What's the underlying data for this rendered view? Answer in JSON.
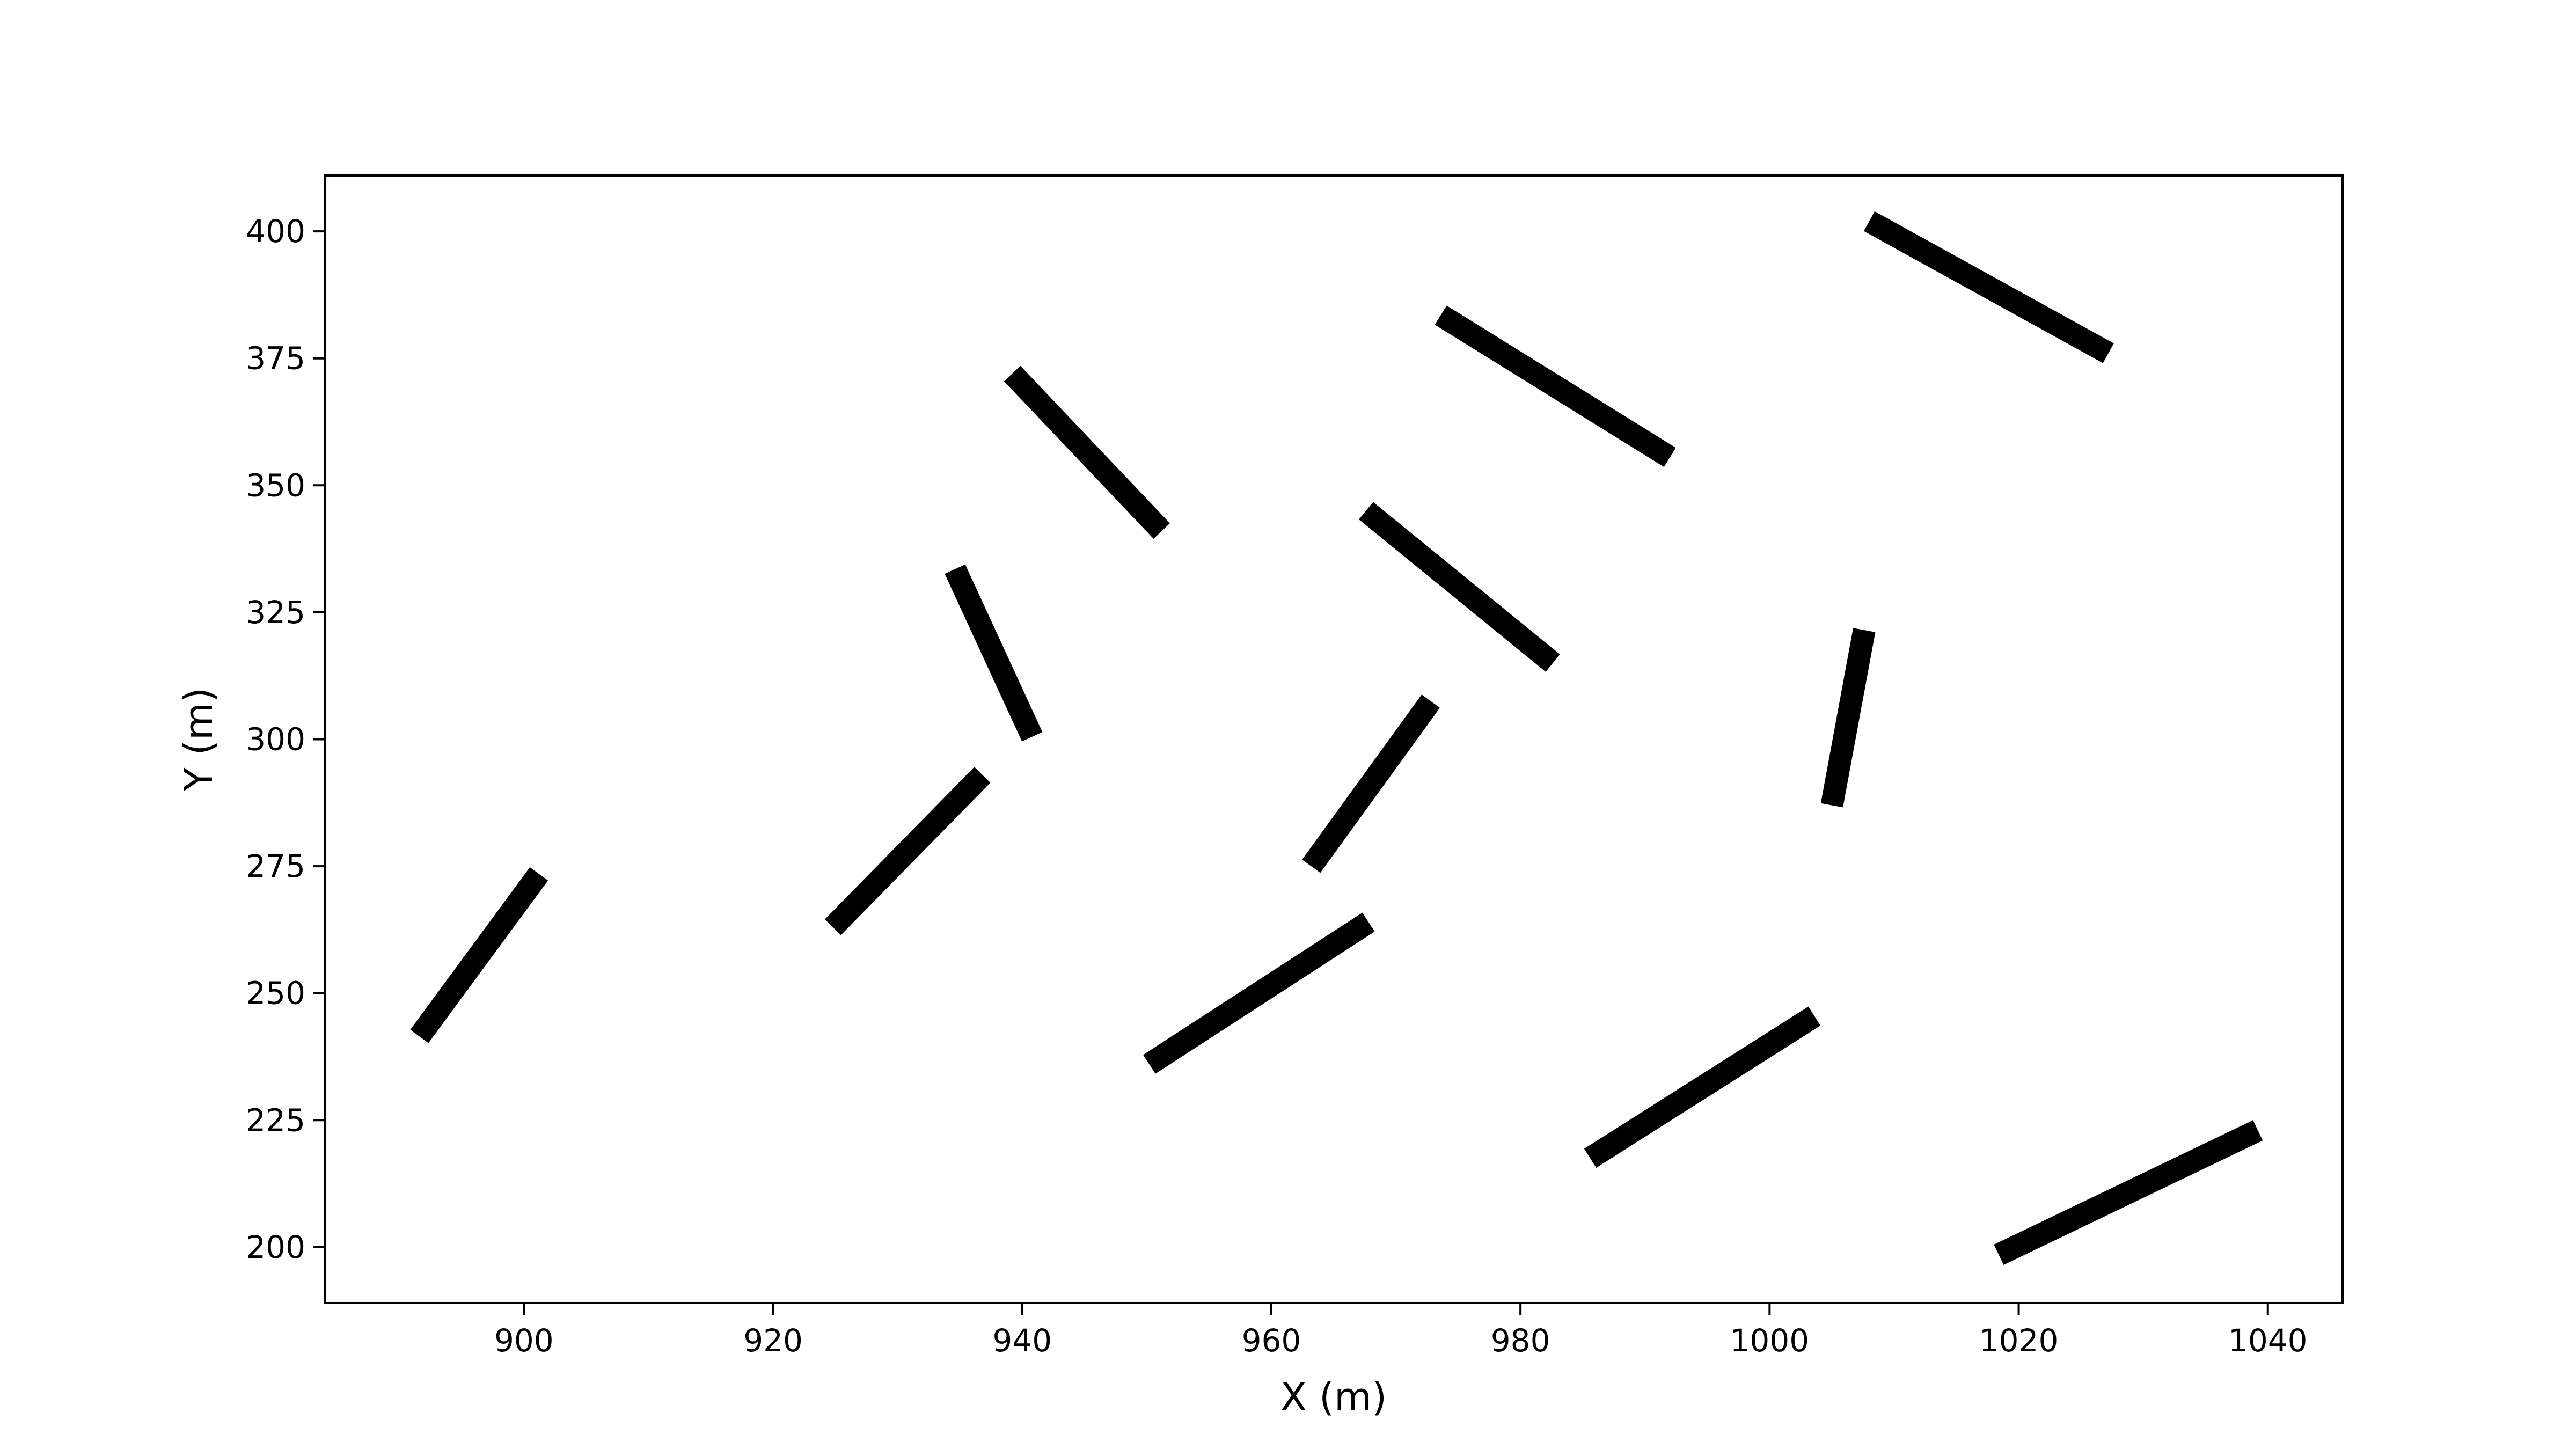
{
  "chart_data": {
    "type": "scatter",
    "title": "",
    "xlabel": "X (m)",
    "ylabel": "Y (m)",
    "xlim": [
      884,
      1046
    ],
    "ylim": [
      189,
      411
    ],
    "xticks": [
      900,
      920,
      940,
      960,
      980,
      1000,
      1020,
      1040
    ],
    "yticks": [
      200,
      225,
      250,
      275,
      300,
      325,
      350,
      375,
      400
    ],
    "grid": false,
    "legend": "none",
    "segment_color": "#000000",
    "segments": [
      {
        "x1": 891.6,
        "y1": 241.5,
        "x2": 901.2,
        "y2": 273.5
      },
      {
        "x1": 924.8,
        "y1": 263.0,
        "x2": 936.8,
        "y2": 293.0
      },
      {
        "x1": 934.6,
        "y1": 333.5,
        "x2": 940.8,
        "y2": 300.5
      },
      {
        "x1": 939.2,
        "y1": 372.0,
        "x2": 951.2,
        "y2": 341.0
      },
      {
        "x1": 950.2,
        "y1": 236.0,
        "x2": 967.8,
        "y2": 264.0
      },
      {
        "x1": 963.2,
        "y1": 275.0,
        "x2": 972.8,
        "y2": 307.5
      },
      {
        "x1": 967.6,
        "y1": 345.0,
        "x2": 982.6,
        "y2": 315.0
      },
      {
        "x1": 973.6,
        "y1": 383.5,
        "x2": 992.0,
        "y2": 355.5
      },
      {
        "x1": 985.6,
        "y1": 217.5,
        "x2": 1003.6,
        "y2": 245.5
      },
      {
        "x1": 1005.0,
        "y1": 287.0,
        "x2": 1007.6,
        "y2": 321.5
      },
      {
        "x1": 1008.0,
        "y1": 402.0,
        "x2": 1027.2,
        "y2": 376.0
      },
      {
        "x1": 1018.4,
        "y1": 198.5,
        "x2": 1039.2,
        "y2": 223.0
      }
    ]
  }
}
